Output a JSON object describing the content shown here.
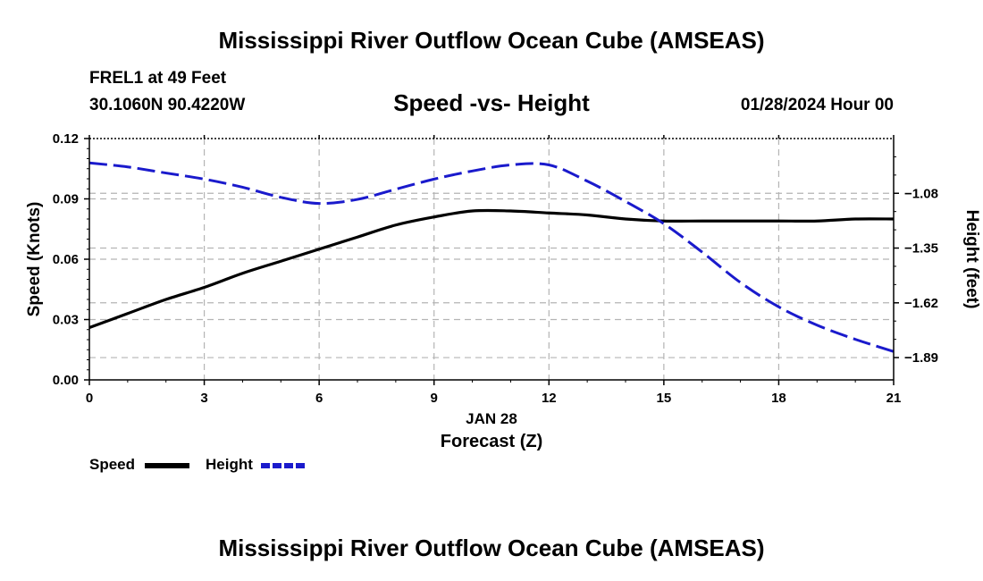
{
  "header": {
    "title": "Mississippi River Outflow Ocean Cube (AMSEAS)",
    "station": "FREL1 at 49 Feet",
    "coords": "30.1060N  90.4220W",
    "subtitle": "Speed -vs- Height",
    "datetime": "01/28/2024 Hour 00"
  },
  "footer": {
    "title": "Mississippi River Outflow Ocean Cube (AMSEAS)"
  },
  "legend": {
    "speed_label": "Speed",
    "height_label": "Height"
  },
  "colors": {
    "speed": "#000000",
    "height": "#1a1acc",
    "grid": "#b4b4b4"
  },
  "chart_data": {
    "type": "line",
    "title": "Speed -vs- Height",
    "xlabel": "Forecast (Z)",
    "xdate_label": "JAN 28",
    "ylabel_left": "Speed (Knots)",
    "ylabel_right": "Height (feet)",
    "xlim": [
      0,
      21
    ],
    "ylim_left": [
      0.0,
      0.12
    ],
    "ylim_right": [
      -2.0,
      -0.81
    ],
    "x_ticks": [
      0,
      3,
      6,
      9,
      12,
      15,
      18,
      21
    ],
    "x_tick_labels": [
      "0",
      "3",
      "6",
      "9",
      "12",
      "15",
      "18",
      "21"
    ],
    "y_left_ticks": [
      0.0,
      0.03,
      0.06,
      0.09,
      0.12
    ],
    "y_left_tick_labels": [
      "0.00",
      "0.03",
      "0.06",
      "0.09",
      "0.12"
    ],
    "y_right_ticks": [
      -1.08,
      -1.35,
      -1.62,
      -1.89
    ],
    "y_right_tick_labels": [
      "−1.08",
      "−1.35",
      "−1.62",
      "−1.89"
    ],
    "grid": true,
    "series": [
      {
        "name": "Speed",
        "axis": "left",
        "style": "solid",
        "x": [
          0,
          1,
          2,
          3,
          4,
          5,
          6,
          7,
          8,
          9,
          10,
          11,
          12,
          13,
          14,
          15,
          16,
          17,
          18,
          19,
          20,
          21
        ],
        "values": [
          0.026,
          0.033,
          0.04,
          0.046,
          0.053,
          0.059,
          0.065,
          0.071,
          0.077,
          0.081,
          0.084,
          0.084,
          0.083,
          0.082,
          0.08,
          0.079,
          0.079,
          0.079,
          0.079,
          0.079,
          0.08,
          0.08
        ]
      },
      {
        "name": "Height",
        "axis": "right",
        "style": "dashed",
        "x": [
          0,
          1,
          2,
          3,
          4,
          5,
          6,
          7,
          8,
          9,
          10,
          11,
          12,
          13,
          14,
          15,
          16,
          17,
          18,
          19,
          20,
          21
        ],
        "values": [
          -0.93,
          -0.95,
          -0.98,
          -1.01,
          -1.05,
          -1.1,
          -1.13,
          -1.11,
          -1.06,
          -1.01,
          -0.97,
          -0.94,
          -0.94,
          -1.02,
          -1.12,
          -1.23,
          -1.37,
          -1.52,
          -1.64,
          -1.73,
          -1.8,
          -1.86
        ]
      }
    ]
  }
}
